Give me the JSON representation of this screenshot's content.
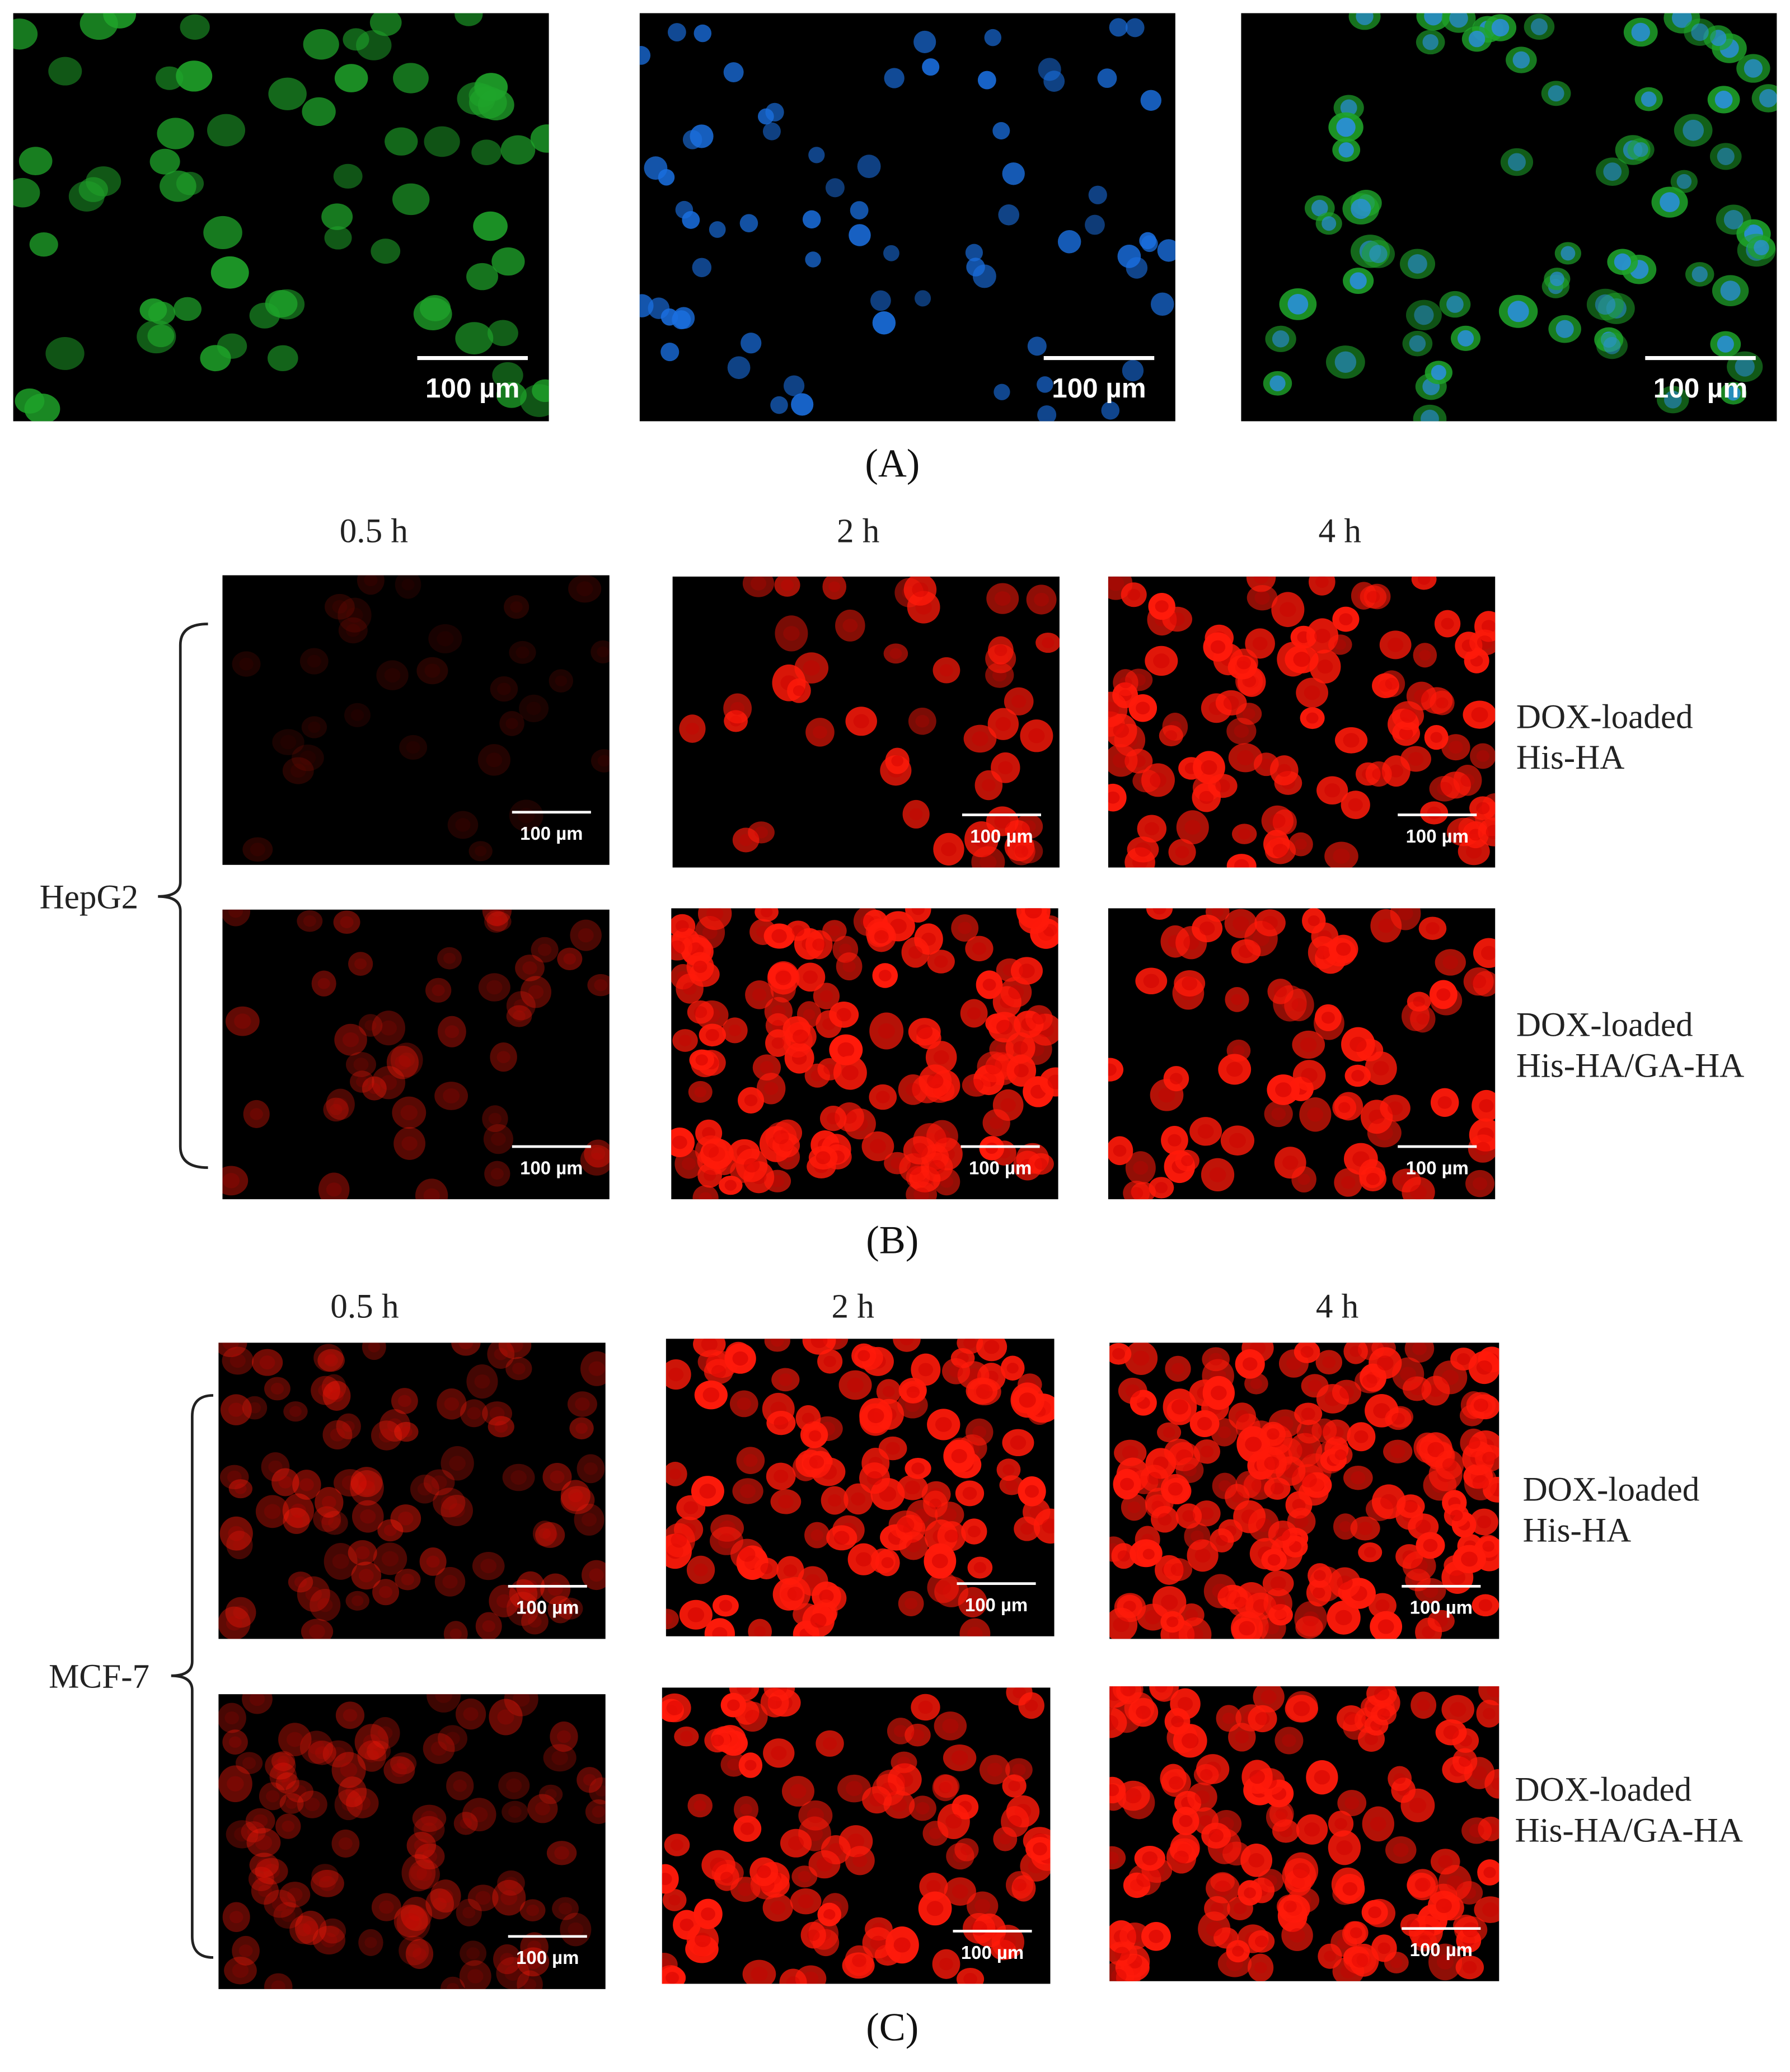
{
  "panel_a": {
    "label": "(A)",
    "images": [
      {
        "scale_bar": "100 µm"
      },
      {
        "scale_bar": "100 µm"
      },
      {
        "scale_bar": "100 µm"
      }
    ]
  },
  "panel_b": {
    "label": "(B)",
    "cell_line": "HepG2",
    "time_labels": [
      "0.5 h",
      "2 h",
      "4 h"
    ],
    "row_labels": [
      [
        "DOX-loaded",
        "His-HA"
      ],
      [
        "DOX-loaded",
        "His-HA/GA-HA"
      ]
    ],
    "images": [
      [
        {
          "scale_bar": "100 µm"
        },
        {
          "scale_bar": "100 µm"
        },
        {
          "scale_bar": "100 µm"
        }
      ],
      [
        {
          "scale_bar": "100 µm"
        },
        {
          "scale_bar": "100 µm"
        },
        {
          "scale_bar": "100 µm"
        }
      ]
    ]
  },
  "panel_c": {
    "label": "(C)",
    "cell_line": "MCF-7",
    "time_labels": [
      "0.5 h",
      "2 h",
      "4 h"
    ],
    "row_labels": [
      [
        "DOX-loaded",
        "His-HA"
      ],
      [
        "DOX-loaded",
        "His-HA/GA-HA"
      ]
    ],
    "images": [
      [
        {
          "scale_bar": "100 µm"
        },
        {
          "scale_bar": "100 µm"
        },
        {
          "scale_bar": "100 µm"
        }
      ],
      [
        {
          "scale_bar": "100 µm"
        },
        {
          "scale_bar": "100 µm"
        },
        {
          "scale_bar": "100 µm"
        }
      ]
    ]
  }
}
